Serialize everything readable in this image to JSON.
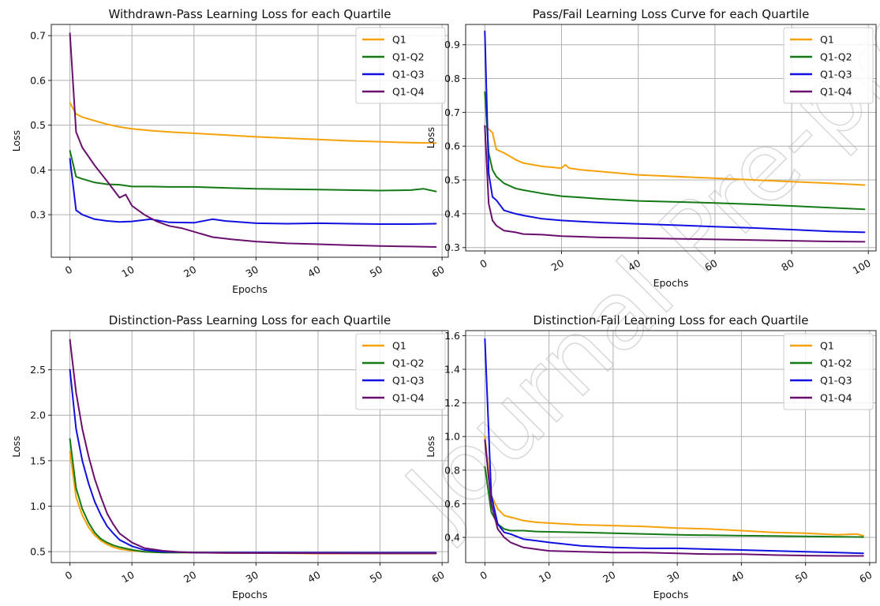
{
  "watermark": "Journal Pre-proof",
  "colors": {
    "Q1": "#f5a20a",
    "Q1-Q2": "#157a15",
    "Q1-Q3": "#1010e0",
    "Q1-Q4": "#6a0f6e"
  },
  "chart_data": [
    {
      "type": "line",
      "title": "Withdrawn-Pass Learning Loss for each Quartile",
      "xlabel": "Epochs",
      "ylabel": "Loss",
      "xlim": [
        -3,
        61
      ],
      "ylim": [
        0.205,
        0.725
      ],
      "xticks": [
        0,
        10,
        20,
        30,
        40,
        50,
        60
      ],
      "yticks": [
        0.3,
        0.4,
        0.5,
        0.6,
        0.7
      ],
      "ytick_decimals": 1,
      "grid": true,
      "legend": "top-right",
      "series": [
        {
          "name": "Q1",
          "x": [
            0,
            1,
            2,
            4,
            6,
            8,
            10,
            13,
            16,
            20,
            25,
            30,
            35,
            40,
            45,
            50,
            55,
            59
          ],
          "y": [
            0.55,
            0.525,
            0.518,
            0.51,
            0.502,
            0.496,
            0.492,
            0.488,
            0.485,
            0.482,
            0.478,
            0.474,
            0.471,
            0.468,
            0.465,
            0.463,
            0.461,
            0.46
          ]
        },
        {
          "name": "Q1-Q2",
          "x": [
            0,
            1,
            2,
            4,
            6,
            8,
            10,
            13,
            16,
            20,
            25,
            30,
            35,
            40,
            45,
            50,
            55,
            57,
            59
          ],
          "y": [
            0.443,
            0.385,
            0.38,
            0.372,
            0.368,
            0.367,
            0.363,
            0.363,
            0.362,
            0.362,
            0.36,
            0.358,
            0.357,
            0.356,
            0.355,
            0.354,
            0.355,
            0.358,
            0.352
          ]
        },
        {
          "name": "Q1-Q3",
          "x": [
            0,
            1,
            2,
            4,
            6,
            8,
            10,
            13,
            16,
            20,
            23,
            25,
            30,
            35,
            40,
            45,
            50,
            55,
            59
          ],
          "y": [
            0.425,
            0.31,
            0.3,
            0.29,
            0.286,
            0.284,
            0.285,
            0.29,
            0.283,
            0.282,
            0.29,
            0.286,
            0.281,
            0.28,
            0.281,
            0.28,
            0.279,
            0.279,
            0.28
          ]
        },
        {
          "name": "Q1-Q4",
          "x": [
            0,
            1,
            2,
            4,
            6,
            8,
            9,
            10,
            12,
            14,
            16,
            18,
            20,
            23,
            26,
            30,
            35,
            40,
            45,
            50,
            55,
            59
          ],
          "y": [
            0.705,
            0.485,
            0.45,
            0.41,
            0.375,
            0.338,
            0.345,
            0.32,
            0.3,
            0.285,
            0.275,
            0.27,
            0.262,
            0.25,
            0.245,
            0.24,
            0.236,
            0.234,
            0.232,
            0.23,
            0.229,
            0.228
          ]
        }
      ]
    },
    {
      "type": "line",
      "title": "Pass/Fail Learning Loss Curve for each Quartile",
      "xlabel": "Epochs",
      "ylabel": "Loss",
      "xlim": [
        -5,
        102
      ],
      "ylim": [
        0.29,
        0.96
      ],
      "xticks": [
        0,
        20,
        40,
        60,
        80,
        100
      ],
      "yticks": [
        0.3,
        0.4,
        0.5,
        0.6,
        0.7,
        0.8,
        0.9
      ],
      "ytick_decimals": 1,
      "grid": true,
      "legend": "top-right",
      "series": [
        {
          "name": "Q1",
          "x": [
            0,
            1,
            2,
            3,
            5,
            8,
            10,
            15,
            20,
            21,
            22,
            25,
            30,
            40,
            50,
            60,
            70,
            80,
            90,
            99
          ],
          "y": [
            0.66,
            0.65,
            0.64,
            0.59,
            0.58,
            0.56,
            0.55,
            0.54,
            0.535,
            0.545,
            0.535,
            0.53,
            0.525,
            0.515,
            0.51,
            0.505,
            0.5,
            0.495,
            0.49,
            0.485
          ]
        },
        {
          "name": "Q1-Q2",
          "x": [
            0,
            1,
            2,
            3,
            5,
            8,
            10,
            15,
            20,
            25,
            30,
            40,
            50,
            60,
            70,
            80,
            90,
            99
          ],
          "y": [
            0.76,
            0.58,
            0.53,
            0.51,
            0.49,
            0.475,
            0.47,
            0.46,
            0.452,
            0.448,
            0.444,
            0.438,
            0.435,
            0.432,
            0.428,
            0.423,
            0.418,
            0.413
          ]
        },
        {
          "name": "Q1-Q3",
          "x": [
            0,
            1,
            2,
            3,
            5,
            8,
            10,
            15,
            20,
            25,
            30,
            40,
            50,
            60,
            70,
            80,
            90,
            99
          ],
          "y": [
            0.94,
            0.52,
            0.45,
            0.44,
            0.41,
            0.4,
            0.395,
            0.385,
            0.38,
            0.377,
            0.374,
            0.37,
            0.366,
            0.362,
            0.358,
            0.353,
            0.348,
            0.345
          ]
        },
        {
          "name": "Q1-Q4",
          "x": [
            0,
            1,
            2,
            3,
            5,
            8,
            10,
            15,
            20,
            25,
            30,
            40,
            50,
            60,
            70,
            80,
            90,
            99
          ],
          "y": [
            0.66,
            0.43,
            0.38,
            0.365,
            0.35,
            0.345,
            0.34,
            0.338,
            0.334,
            0.332,
            0.33,
            0.328,
            0.326,
            0.324,
            0.322,
            0.32,
            0.318,
            0.317
          ]
        }
      ]
    },
    {
      "type": "line",
      "title": "Distinction-Pass Learning Loss for each Quartile",
      "xlabel": "Epochs",
      "ylabel": "Loss",
      "xlim": [
        -3,
        61
      ],
      "ylim": [
        0.38,
        2.93
      ],
      "xticks": [
        0,
        10,
        20,
        30,
        40,
        50,
        60
      ],
      "yticks": [
        0.5,
        1.0,
        1.5,
        2.0,
        2.5
      ],
      "ytick_decimals": 1,
      "grid": true,
      "legend": "top-right",
      "series": [
        {
          "name": "Q1",
          "x": [
            0,
            1,
            2,
            3,
            4,
            5,
            6,
            7,
            8,
            10,
            12,
            15,
            18,
            20,
            25,
            30,
            40,
            50,
            59
          ],
          "y": [
            1.6,
            1.1,
            0.9,
            0.77,
            0.68,
            0.62,
            0.58,
            0.55,
            0.53,
            0.51,
            0.5,
            0.49,
            0.49,
            0.49,
            0.485,
            0.485,
            0.48,
            0.48,
            0.48
          ]
        },
        {
          "name": "Q1-Q2",
          "x": [
            0,
            1,
            2,
            3,
            4,
            5,
            6,
            7,
            8,
            10,
            12,
            15,
            18,
            20,
            25,
            30,
            40,
            50,
            59
          ],
          "y": [
            1.74,
            1.2,
            0.97,
            0.82,
            0.71,
            0.64,
            0.6,
            0.57,
            0.55,
            0.52,
            0.5,
            0.49,
            0.49,
            0.49,
            0.488,
            0.486,
            0.484,
            0.483,
            0.483
          ]
        },
        {
          "name": "Q1-Q3",
          "x": [
            0,
            1,
            2,
            3,
            4,
            5,
            6,
            7,
            8,
            10,
            12,
            15,
            18,
            20,
            25,
            30,
            40,
            50,
            59
          ],
          "y": [
            2.5,
            1.85,
            1.5,
            1.25,
            1.05,
            0.9,
            0.78,
            0.7,
            0.63,
            0.56,
            0.52,
            0.5,
            0.495,
            0.49,
            0.49,
            0.49,
            0.489,
            0.488,
            0.488
          ]
        },
        {
          "name": "Q1-Q4",
          "x": [
            0,
            1,
            2,
            3,
            4,
            5,
            6,
            7,
            8,
            10,
            12,
            15,
            18,
            20,
            25,
            30,
            40,
            50,
            59
          ],
          "y": [
            2.83,
            2.25,
            1.85,
            1.55,
            1.3,
            1.1,
            0.92,
            0.8,
            0.7,
            0.6,
            0.54,
            0.51,
            0.495,
            0.49,
            0.487,
            0.485,
            0.483,
            0.482,
            0.482
          ]
        }
      ]
    },
    {
      "type": "line",
      "title": "Distinction-Fail Learning Loss for each Quartile",
      "xlabel": "Epochs",
      "ylabel": "Loss",
      "xlim": [
        -3,
        61
      ],
      "ylim": [
        0.25,
        1.63
      ],
      "xticks": [
        0,
        10,
        20,
        30,
        40,
        50,
        60
      ],
      "yticks": [
        0.4,
        0.6,
        0.8,
        1.0,
        1.2,
        1.4,
        1.6
      ],
      "ytick_decimals": 1,
      "grid": true,
      "legend": "top-right",
      "series": [
        {
          "name": "Q1",
          "x": [
            0,
            1,
            2,
            3,
            4,
            6,
            8,
            10,
            15,
            20,
            25,
            30,
            35,
            40,
            45,
            50,
            55,
            58,
            59
          ],
          "y": [
            1.0,
            0.65,
            0.57,
            0.53,
            0.52,
            0.5,
            0.49,
            0.485,
            0.475,
            0.47,
            0.465,
            0.455,
            0.45,
            0.44,
            0.43,
            0.425,
            0.415,
            0.42,
            0.41
          ]
        },
        {
          "name": "Q1-Q2",
          "x": [
            0,
            1,
            2,
            3,
            4,
            6,
            8,
            10,
            15,
            20,
            25,
            30,
            35,
            40,
            45,
            50,
            55,
            59
          ],
          "y": [
            0.82,
            0.55,
            0.48,
            0.45,
            0.44,
            0.44,
            0.435,
            0.433,
            0.43,
            0.425,
            0.42,
            0.415,
            0.413,
            0.41,
            0.408,
            0.406,
            0.404,
            0.402
          ]
        },
        {
          "name": "Q1-Q3",
          "x": [
            0,
            1,
            2,
            3,
            4,
            6,
            8,
            10,
            15,
            20,
            25,
            30,
            35,
            40,
            45,
            50,
            55,
            59
          ],
          "y": [
            1.58,
            0.65,
            0.48,
            0.43,
            0.42,
            0.39,
            0.38,
            0.37,
            0.35,
            0.34,
            0.335,
            0.335,
            0.33,
            0.325,
            0.32,
            0.315,
            0.31,
            0.305
          ]
        },
        {
          "name": "Q1-Q4",
          "x": [
            0,
            1,
            2,
            3,
            4,
            6,
            8,
            10,
            15,
            20,
            25,
            30,
            35,
            40,
            45,
            50,
            55,
            59
          ],
          "y": [
            0.98,
            0.6,
            0.45,
            0.4,
            0.37,
            0.34,
            0.33,
            0.32,
            0.315,
            0.31,
            0.31,
            0.305,
            0.3,
            0.3,
            0.295,
            0.292,
            0.29,
            0.29
          ]
        }
      ]
    }
  ]
}
